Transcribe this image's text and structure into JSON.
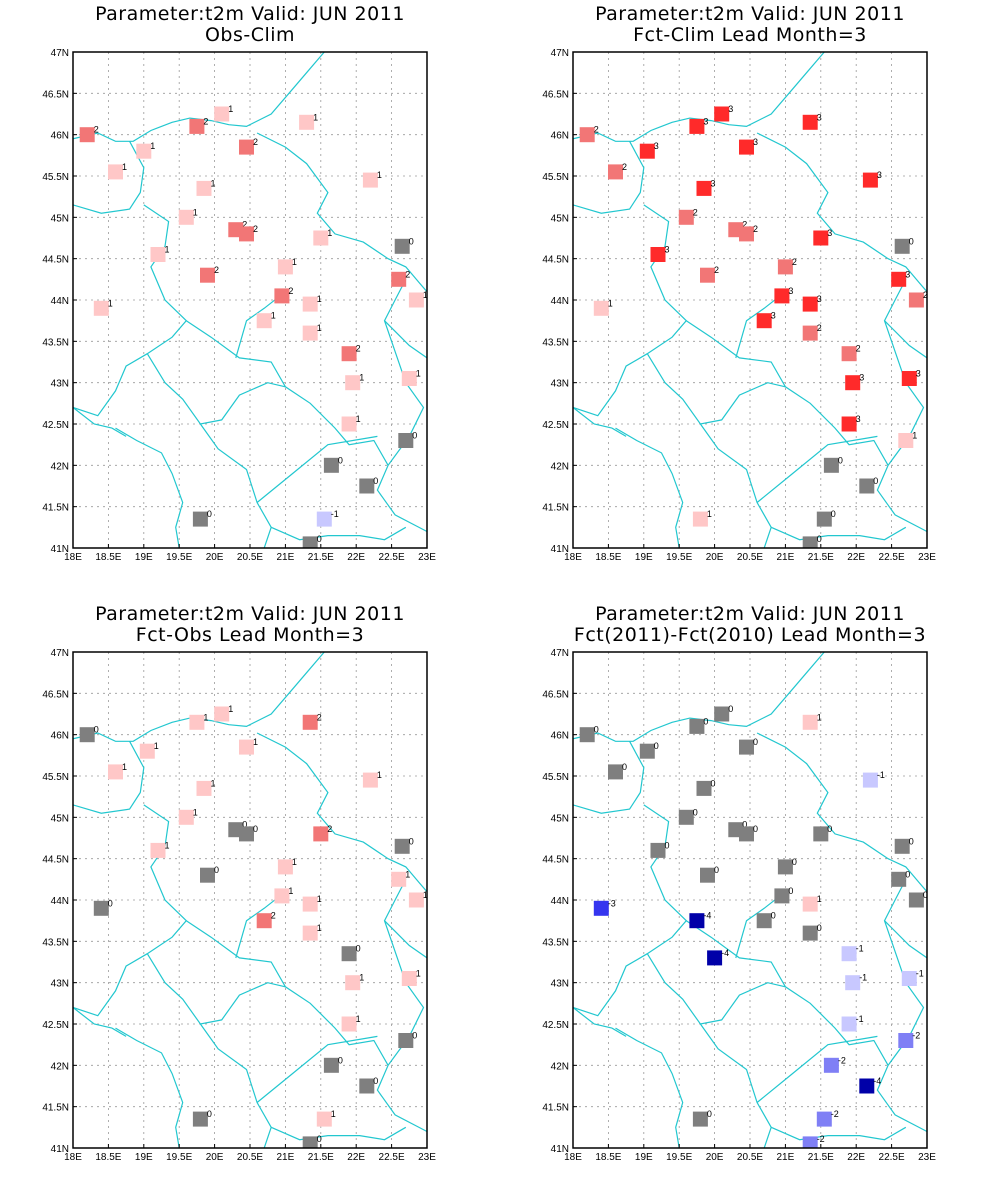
{
  "chart_data": [
    {
      "type": "scatter",
      "title": "Parameter:t2m Valid: JUN 2011",
      "subtitle": "Obs-Clim",
      "xlim": [
        18,
        23
      ],
      "ylim": [
        41,
        47
      ],
      "xticks": [
        "18E",
        "18.5E",
        "19E",
        "19.5E",
        "20E",
        "20.5E",
        "21E",
        "21.5E",
        "22E",
        "22.5E",
        "23E"
      ],
      "yticks": [
        "41N",
        "41.5N",
        "42N",
        "42.5N",
        "43N",
        "43.5N",
        "44N",
        "44.5N",
        "45N",
        "45.5N",
        "46N",
        "46.5N",
        "47N"
      ],
      "grid": true,
      "points": [
        {
          "lon": 18.2,
          "lat": 46.0,
          "v": 2
        },
        {
          "lon": 18.6,
          "lat": 45.55,
          "v": 1
        },
        {
          "lon": 19.0,
          "lat": 45.8,
          "v": 1
        },
        {
          "lon": 19.75,
          "lat": 46.1,
          "v": 2
        },
        {
          "lon": 20.1,
          "lat": 46.25,
          "v": 1
        },
        {
          "lon": 19.85,
          "lat": 45.35,
          "v": 1
        },
        {
          "lon": 20.45,
          "lat": 45.85,
          "v": 2
        },
        {
          "lon": 21.3,
          "lat": 46.15,
          "v": 1
        },
        {
          "lon": 22.2,
          "lat": 45.45,
          "v": 1
        },
        {
          "lon": 19.6,
          "lat": 45.0,
          "v": 1
        },
        {
          "lon": 20.3,
          "lat": 44.85,
          "v": 2
        },
        {
          "lon": 20.45,
          "lat": 44.8,
          "v": 2
        },
        {
          "lon": 21.5,
          "lat": 44.75,
          "v": 1
        },
        {
          "lon": 22.65,
          "lat": 44.65,
          "v": 0
        },
        {
          "lon": 19.2,
          "lat": 44.55,
          "v": 1
        },
        {
          "lon": 19.9,
          "lat": 44.3,
          "v": 2
        },
        {
          "lon": 21.0,
          "lat": 44.4,
          "v": 1
        },
        {
          "lon": 22.6,
          "lat": 44.25,
          "v": 2
        },
        {
          "lon": 20.95,
          "lat": 44.05,
          "v": 2
        },
        {
          "lon": 22.85,
          "lat": 44.0,
          "v": 1
        },
        {
          "lon": 18.4,
          "lat": 43.9,
          "v": 1
        },
        {
          "lon": 21.35,
          "lat": 43.95,
          "v": 1
        },
        {
          "lon": 20.7,
          "lat": 43.75,
          "v": 1
        },
        {
          "lon": 21.35,
          "lat": 43.6,
          "v": 1
        },
        {
          "lon": 21.9,
          "lat": 43.35,
          "v": 2
        },
        {
          "lon": 21.95,
          "lat": 43.0,
          "v": 1
        },
        {
          "lon": 22.75,
          "lat": 43.05,
          "v": 1
        },
        {
          "lon": 21.9,
          "lat": 42.5,
          "v": 1
        },
        {
          "lon": 22.7,
          "lat": 42.3,
          "v": 0
        },
        {
          "lon": 21.65,
          "lat": 42.0,
          "v": 0
        },
        {
          "lon": 22.15,
          "lat": 41.75,
          "v": 0
        },
        {
          "lon": 19.8,
          "lat": 41.35,
          "v": 0
        },
        {
          "lon": 21.55,
          "lat": 41.35,
          "v": -1
        },
        {
          "lon": 21.35,
          "lat": 41.05,
          "v": 0
        }
      ]
    },
    {
      "type": "scatter",
      "title": "Parameter:t2m Valid: JUN 2011",
      "subtitle": "Fct-Clim Lead Month=3",
      "xlim": [
        18,
        23
      ],
      "ylim": [
        41,
        47
      ],
      "xticks": [
        "18E",
        "18.5E",
        "19E",
        "19.5E",
        "20E",
        "20.5E",
        "21E",
        "21.5E",
        "22E",
        "22.5E",
        "23E"
      ],
      "yticks": [
        "41N",
        "41.5N",
        "42N",
        "42.5N",
        "43N",
        "43.5N",
        "44N",
        "44.5N",
        "45N",
        "45.5N",
        "46N",
        "46.5N",
        "47N"
      ],
      "grid": true,
      "points": [
        {
          "lon": 18.2,
          "lat": 46.0,
          "v": 2
        },
        {
          "lon": 18.6,
          "lat": 45.55,
          "v": 2
        },
        {
          "lon": 19.05,
          "lat": 45.8,
          "v": 3
        },
        {
          "lon": 19.75,
          "lat": 46.1,
          "v": 3
        },
        {
          "lon": 20.1,
          "lat": 46.25,
          "v": 3
        },
        {
          "lon": 19.85,
          "lat": 45.35,
          "v": 3
        },
        {
          "lon": 20.45,
          "lat": 45.85,
          "v": 3
        },
        {
          "lon": 21.35,
          "lat": 46.15,
          "v": 3
        },
        {
          "lon": 22.2,
          "lat": 45.45,
          "v": 3
        },
        {
          "lon": 19.6,
          "lat": 45.0,
          "v": 2
        },
        {
          "lon": 20.3,
          "lat": 44.85,
          "v": 2
        },
        {
          "lon": 20.45,
          "lat": 44.8,
          "v": 2
        },
        {
          "lon": 21.5,
          "lat": 44.75,
          "v": 3
        },
        {
          "lon": 22.65,
          "lat": 44.65,
          "v": 0
        },
        {
          "lon": 19.2,
          "lat": 44.55,
          "v": 3
        },
        {
          "lon": 19.9,
          "lat": 44.3,
          "v": 2
        },
        {
          "lon": 21.0,
          "lat": 44.4,
          "v": 2
        },
        {
          "lon": 22.6,
          "lat": 44.25,
          "v": 3
        },
        {
          "lon": 20.95,
          "lat": 44.05,
          "v": 3
        },
        {
          "lon": 22.85,
          "lat": 44.0,
          "v": 2
        },
        {
          "lon": 18.4,
          "lat": 43.9,
          "v": 1
        },
        {
          "lon": 21.35,
          "lat": 43.95,
          "v": 3
        },
        {
          "lon": 20.7,
          "lat": 43.75,
          "v": 3
        },
        {
          "lon": 21.35,
          "lat": 43.6,
          "v": 2
        },
        {
          "lon": 21.9,
          "lat": 43.35,
          "v": 2
        },
        {
          "lon": 21.95,
          "lat": 43.0,
          "v": 3
        },
        {
          "lon": 22.75,
          "lat": 43.05,
          "v": 3
        },
        {
          "lon": 21.9,
          "lat": 42.5,
          "v": 3
        },
        {
          "lon": 22.7,
          "lat": 42.3,
          "v": 1
        },
        {
          "lon": 21.65,
          "lat": 42.0,
          "v": 0
        },
        {
          "lon": 22.15,
          "lat": 41.75,
          "v": 0
        },
        {
          "lon": 19.8,
          "lat": 41.35,
          "v": 1
        },
        {
          "lon": 21.55,
          "lat": 41.35,
          "v": 0
        },
        {
          "lon": 21.35,
          "lat": 41.05,
          "v": 0
        }
      ]
    },
    {
      "type": "scatter",
      "title": "Parameter:t2m Valid: JUN 2011",
      "subtitle": "Fct-Obs Lead Month=3",
      "xlim": [
        18,
        23
      ],
      "ylim": [
        41,
        47
      ],
      "xticks": [
        "18E",
        "18.5E",
        "19E",
        "19.5E",
        "20E",
        "20.5E",
        "21E",
        "21.5E",
        "22E",
        "22.5E",
        "23E"
      ],
      "yticks": [
        "41N",
        "41.5N",
        "42N",
        "42.5N",
        "43N",
        "43.5N",
        "44N",
        "44.5N",
        "45N",
        "45.5N",
        "46N",
        "46.5N",
        "47N"
      ],
      "grid": true,
      "points": [
        {
          "lon": 18.2,
          "lat": 46.0,
          "v": 0
        },
        {
          "lon": 18.6,
          "lat": 45.55,
          "v": 1
        },
        {
          "lon": 19.05,
          "lat": 45.8,
          "v": 1
        },
        {
          "lon": 19.75,
          "lat": 46.15,
          "v": 1
        },
        {
          "lon": 20.1,
          "lat": 46.25,
          "v": 1
        },
        {
          "lon": 19.85,
          "lat": 45.35,
          "v": 1
        },
        {
          "lon": 20.45,
          "lat": 45.85,
          "v": 1
        },
        {
          "lon": 21.35,
          "lat": 46.15,
          "v": 2
        },
        {
          "lon": 22.2,
          "lat": 45.45,
          "v": 1
        },
        {
          "lon": 19.6,
          "lat": 45.0,
          "v": 1
        },
        {
          "lon": 20.3,
          "lat": 44.85,
          "v": 0
        },
        {
          "lon": 20.45,
          "lat": 44.8,
          "v": 0
        },
        {
          "lon": 21.5,
          "lat": 44.8,
          "v": 2
        },
        {
          "lon": 22.65,
          "lat": 44.65,
          "v": 0
        },
        {
          "lon": 19.2,
          "lat": 44.6,
          "v": 1
        },
        {
          "lon": 19.9,
          "lat": 44.3,
          "v": 0
        },
        {
          "lon": 21.0,
          "lat": 44.4,
          "v": 1
        },
        {
          "lon": 22.6,
          "lat": 44.25,
          "v": 1
        },
        {
          "lon": 20.95,
          "lat": 44.05,
          "v": 1
        },
        {
          "lon": 22.85,
          "lat": 44.0,
          "v": 1
        },
        {
          "lon": 18.4,
          "lat": 43.9,
          "v": 0
        },
        {
          "lon": 21.35,
          "lat": 43.95,
          "v": 1
        },
        {
          "lon": 20.7,
          "lat": 43.75,
          "v": 2
        },
        {
          "lon": 21.35,
          "lat": 43.6,
          "v": 1
        },
        {
          "lon": 21.9,
          "lat": 43.35,
          "v": 0
        },
        {
          "lon": 21.95,
          "lat": 43.0,
          "v": 1
        },
        {
          "lon": 22.75,
          "lat": 43.05,
          "v": 1
        },
        {
          "lon": 21.9,
          "lat": 42.5,
          "v": 1
        },
        {
          "lon": 22.7,
          "lat": 42.3,
          "v": 0
        },
        {
          "lon": 21.65,
          "lat": 42.0,
          "v": 0
        },
        {
          "lon": 22.15,
          "lat": 41.75,
          "v": 0
        },
        {
          "lon": 19.8,
          "lat": 41.35,
          "v": 0
        },
        {
          "lon": 21.55,
          "lat": 41.35,
          "v": 1
        },
        {
          "lon": 21.35,
          "lat": 41.05,
          "v": 0
        }
      ]
    },
    {
      "type": "scatter",
      "title": "Parameter:t2m Valid: JUN 2011",
      "subtitle": "Fct(2011)-Fct(2010) Lead Month=3",
      "xlim": [
        18,
        23
      ],
      "ylim": [
        41,
        47
      ],
      "xticks": [
        "18E",
        "18.5E",
        "19E",
        "19.5E",
        "20E",
        "20.5E",
        "21E",
        "21.5E",
        "22E",
        "22.5E",
        "23E"
      ],
      "yticks": [
        "41N",
        "41.5N",
        "42N",
        "42.5N",
        "43N",
        "43.5N",
        "44N",
        "44.5N",
        "45N",
        "45.5N",
        "46N",
        "46.5N",
        "47N"
      ],
      "grid": true,
      "points": [
        {
          "lon": 18.2,
          "lat": 46.0,
          "v": 0
        },
        {
          "lon": 18.6,
          "lat": 45.55,
          "v": 0
        },
        {
          "lon": 19.05,
          "lat": 45.8,
          "v": 0
        },
        {
          "lon": 19.75,
          "lat": 46.1,
          "v": 0
        },
        {
          "lon": 20.1,
          "lat": 46.25,
          "v": 0
        },
        {
          "lon": 19.85,
          "lat": 45.35,
          "v": 0
        },
        {
          "lon": 20.45,
          "lat": 45.85,
          "v": 0
        },
        {
          "lon": 21.35,
          "lat": 46.15,
          "v": 1
        },
        {
          "lon": 22.2,
          "lat": 45.45,
          "v": -1
        },
        {
          "lon": 19.6,
          "lat": 45.0,
          "v": 0
        },
        {
          "lon": 20.3,
          "lat": 44.85,
          "v": 0
        },
        {
          "lon": 20.45,
          "lat": 44.8,
          "v": 0
        },
        {
          "lon": 21.5,
          "lat": 44.8,
          "v": 0
        },
        {
          "lon": 22.65,
          "lat": 44.65,
          "v": 0
        },
        {
          "lon": 19.2,
          "lat": 44.6,
          "v": 0
        },
        {
          "lon": 19.9,
          "lat": 44.3,
          "v": 0
        },
        {
          "lon": 21.0,
          "lat": 44.4,
          "v": 0
        },
        {
          "lon": 22.6,
          "lat": 44.25,
          "v": 0
        },
        {
          "lon": 20.95,
          "lat": 44.05,
          "v": 0
        },
        {
          "lon": 22.85,
          "lat": 44.0,
          "v": 0
        },
        {
          "lon": 18.4,
          "lat": 43.9,
          "v": -3
        },
        {
          "lon": 21.35,
          "lat": 43.95,
          "v": 1
        },
        {
          "lon": 20.7,
          "lat": 43.75,
          "v": 0
        },
        {
          "lon": 21.35,
          "lat": 43.6,
          "v": 0
        },
        {
          "lon": 19.75,
          "lat": 43.75,
          "v": -4
        },
        {
          "lon": 20.0,
          "lat": 43.3,
          "v": -4
        },
        {
          "lon": 21.9,
          "lat": 43.35,
          "v": -1
        },
        {
          "lon": 21.95,
          "lat": 43.0,
          "v": -1
        },
        {
          "lon": 22.75,
          "lat": 43.05,
          "v": -1
        },
        {
          "lon": 21.9,
          "lat": 42.5,
          "v": -1
        },
        {
          "lon": 22.7,
          "lat": 42.3,
          "v": -2
        },
        {
          "lon": 21.65,
          "lat": 42.0,
          "v": -2
        },
        {
          "lon": 22.15,
          "lat": 41.75,
          "v": -4
        },
        {
          "lon": 21.55,
          "lat": 41.35,
          "v": -2
        },
        {
          "lon": 19.8,
          "lat": 41.35,
          "v": 0
        },
        {
          "lon": 21.35,
          "lat": 41.05,
          "v": -2
        }
      ]
    }
  ],
  "colors": {
    "zero": "#7f7f7f",
    "pos1": "#ffc7c7",
    "pos2": "#f27676",
    "pos3": "#ff2a2a",
    "neg1": "#c8c8ff",
    "neg2": "#7f7ff5",
    "neg3": "#3535ef",
    "neg4": "#0000a8",
    "coast": "#22c7cf"
  }
}
